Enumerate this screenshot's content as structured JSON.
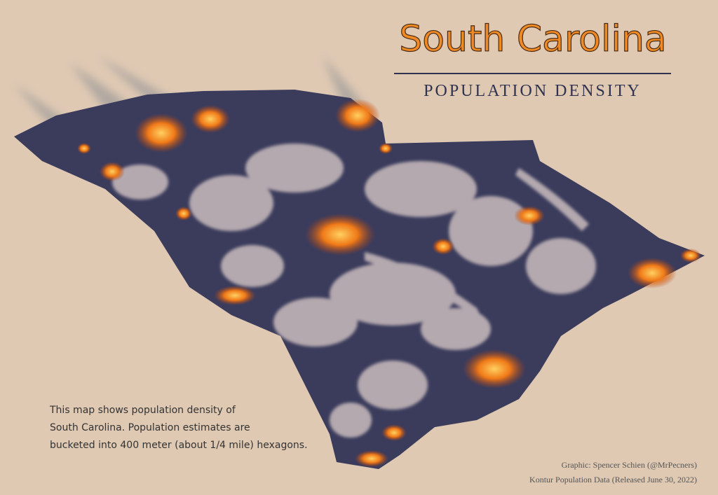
{
  "header": {
    "title": "South Carolina",
    "subtitle": "POPULATION DENSITY"
  },
  "description": [
    "This map shows population density of",
    "South Carolina. Population estimates are",
    "bucketed into 400 meter (about 1/4 mile) hexagons."
  ],
  "credits": [
    "Graphic: Spencer Schien (@MrPecners)",
    "Kontur Population Data (Released June 30, 2022)"
  ]
}
